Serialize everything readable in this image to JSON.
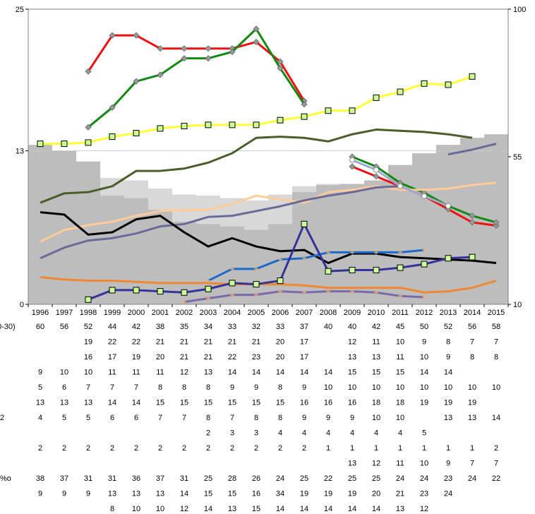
{
  "chart_data": {
    "type": "line",
    "x": [
      "1996",
      "1997",
      "1998",
      "1999",
      "2000",
      "2001",
      "2002",
      "2003",
      "2004",
      "2005",
      "2006",
      "2007",
      "2008",
      "2009",
      "2010",
      "2011",
      "2012",
      "2013",
      "2014",
      "2015"
    ],
    "y_left": {
      "min": 0,
      "max": 25,
      "ticks": [
        "0",
        "13",
        "25"
      ]
    },
    "y_right": {
      "min": 10,
      "max": 100,
      "ticks": [
        "10",
        "55",
        "100"
      ]
    },
    "grid": false,
    "background_areas": [
      {
        "color": "#bdbdbd",
        "axis": "left",
        "values": [
          13.5,
          13.0,
          12.1,
          9.2,
          9.0,
          8.0,
          7.0,
          6.8,
          6.6,
          6.3,
          6.8,
          9.5,
          10.1,
          10.2,
          10.5,
          11.8,
          12.8,
          13.5,
          14.1,
          14.4
        ]
      },
      {
        "color": "#d8d8d8",
        "axis": "left",
        "values": [
          13.5,
          13.0,
          12.1,
          10.7,
          10.5,
          9.8,
          9.3,
          9.2,
          9.0,
          8.8,
          9.3,
          10.0,
          10.2,
          10.2,
          10.5,
          11.8,
          12.8,
          13.5,
          14.1,
          14.4
        ]
      }
    ],
    "series": [
      {
        "color": "#ee1111",
        "axis": "right",
        "marker": "diamond",
        "values": [
          null,
          null,
          81,
          92,
          92,
          88,
          88,
          88,
          88,
          90,
          84,
          72,
          null,
          52,
          49,
          46,
          43,
          39,
          35,
          34
        ]
      },
      {
        "color": "#118811",
        "axis": "right",
        "marker": "diamond",
        "values": [
          null,
          null,
          64,
          70,
          78,
          80,
          85,
          85,
          87,
          94,
          82,
          71,
          null,
          55,
          52,
          47,
          44,
          40,
          37,
          35
        ]
      },
      {
        "color": "#ffff33",
        "axis": "right",
        "marker": "square",
        "values": [
          null,
          null,
          null,
          null,
          null,
          null,
          null,
          null,
          null,
          null,
          null,
          null,
          null,
          null,
          null,
          null,
          null,
          null,
          null,
          null
        ]
      },
      {
        "color": "#ffff33",
        "axis": "left",
        "marker": "square",
        "values": [
          13.6,
          13.6,
          13.7,
          14.2,
          14.5,
          14.9,
          15.1,
          15.2,
          15.2,
          15.2,
          15.6,
          15.9,
          16.4,
          16.4,
          17.5,
          18.0,
          18.7,
          18.6,
          19.3,
          null
        ]
      },
      {
        "color": "#4a5e2a",
        "axis": "left",
        "marker": "none",
        "values": [
          8.6,
          9.4,
          9.5,
          10.0,
          11.3,
          11.3,
          11.5,
          12.0,
          12.8,
          14.1,
          14.2,
          14.1,
          13.8,
          14.4,
          14.8,
          14.7,
          14.6,
          14.4,
          14.1,
          null
        ]
      },
      {
        "color": "#ffcc99",
        "axis": "left",
        "marker": "none",
        "values": [
          5.3,
          6.3,
          6.7,
          7.0,
          7.5,
          7.9,
          8.0,
          8.0,
          8.5,
          9.2,
          8.9,
          8.6,
          9.5,
          9.7,
          10.0,
          9.7,
          9.7,
          9.8,
          10.1,
          10.3
        ]
      },
      {
        "color": "#6a6a9a",
        "axis": "left",
        "marker": "none",
        "values": [
          3.9,
          4.8,
          5.4,
          5.6,
          6.0,
          6.6,
          6.8,
          7.4,
          7.5,
          7.9,
          8.3,
          8.8,
          9.2,
          9.5,
          9.9,
          10.0,
          null,
          12.7,
          13.1,
          13.6
        ]
      },
      {
        "color": "#000000",
        "axis": "left",
        "marker": "none",
        "values": [
          7.8,
          7.6,
          5.9,
          6.1,
          7.2,
          7.5,
          6.1,
          4.9,
          5.6,
          4.9,
          4.5,
          4.6,
          3.5,
          4.3,
          4.3,
          4.0,
          3.9,
          3.8,
          3.7,
          3.5
        ]
      },
      {
        "color": "#ee8833",
        "axis": "left",
        "marker": "none",
        "values": [
          2.3,
          2.1,
          2.0,
          2.0,
          1.9,
          1.8,
          1.8,
          1.8,
          1.7,
          1.7,
          1.7,
          1.6,
          1.4,
          1.4,
          1.4,
          1.4,
          1.0,
          1.1,
          1.4,
          2.0
        ]
      },
      {
        "color": "#1a6acc",
        "axis": "left",
        "marker": "plus",
        "values": [
          null,
          null,
          null,
          null,
          null,
          null,
          null,
          2.0,
          3.0,
          3.0,
          3.8,
          3.9,
          4.4,
          4.4,
          4.4,
          4.4,
          4.6,
          null,
          null,
          null
        ]
      },
      {
        "color": "#333399",
        "axis": "left",
        "marker": "square",
        "values": [
          null,
          null,
          0.4,
          1.2,
          1.2,
          1.1,
          1.0,
          1.3,
          1.8,
          1.7,
          2.0,
          6.8,
          2.8,
          2.9,
          2.9,
          3.1,
          3.4,
          3.9,
          4.0,
          null
        ]
      },
      {
        "color": "#7a6aaa",
        "axis": "left",
        "marker": "plus",
        "values": [
          null,
          null,
          null,
          null,
          null,
          null,
          0.2,
          0.5,
          0.8,
          0.8,
          1.1,
          1.0,
          1.1,
          1.1,
          1.0,
          0.7,
          0.6,
          null,
          null,
          null
        ]
      },
      {
        "color": "#a0a8cc",
        "axis": "right",
        "marker": "circle",
        "values": [
          null,
          null,
          null,
          null,
          null,
          null,
          null,
          null,
          null,
          null,
          null,
          null,
          null,
          54,
          51,
          46,
          43,
          40,
          null,
          null
        ]
      },
      {
        "color": "#bbbbbb",
        "axis": "right",
        "marker": "circle",
        "values": [
          null,
          null,
          null,
          null,
          null,
          null,
          null,
          null,
          null,
          null,
          null,
          null,
          null,
          null,
          null,
          null,
          null,
          null,
          null,
          null
        ]
      }
    ],
    "table": {
      "row_labels": [
        "0-30)",
        "",
        "",
        "",
        "",
        "",
        "2",
        "",
        "",
        "",
        "%o",
        "",
        ""
      ],
      "rows": [
        [
          "60",
          "56",
          "52",
          "44",
          "42",
          "38",
          "35",
          "34",
          "33",
          "32",
          "33",
          "37",
          "40",
          "40",
          "42",
          "45",
          "50",
          "52",
          "56",
          "58"
        ],
        [
          "",
          "",
          "19",
          "22",
          "22",
          "21",
          "21",
          "21",
          "21",
          "21",
          "20",
          "17",
          "",
          "12",
          "11",
          "10",
          "9",
          "8",
          "7",
          "7"
        ],
        [
          "",
          "",
          "16",
          "17",
          "19",
          "20",
          "21",
          "21",
          "22",
          "23",
          "20",
          "17",
          "",
          "13",
          "13",
          "11",
          "10",
          "9",
          "8",
          "8"
        ],
        [
          "9",
          "10",
          "10",
          "11",
          "11",
          "11",
          "12",
          "13",
          "14",
          "14",
          "14",
          "14",
          "14",
          "15",
          "15",
          "15",
          "14",
          "14",
          "",
          ""
        ],
        [
          "5",
          "6",
          "7",
          "7",
          "7",
          "8",
          "8",
          "8",
          "9",
          "9",
          "8",
          "9",
          "10",
          "10",
          "10",
          "10",
          "10",
          "10",
          "10",
          "10"
        ],
        [
          "13",
          "13",
          "13",
          "14",
          "14",
          "15",
          "15",
          "15",
          "15",
          "15",
          "15",
          "16",
          "16",
          "16",
          "18",
          "18",
          "19",
          "19",
          "19",
          ""
        ],
        [
          "4",
          "5",
          "5",
          "6",
          "6",
          "7",
          "7",
          "8",
          "7",
          "8",
          "8",
          "9",
          "9",
          "9",
          "10",
          "10",
          "",
          "13",
          "13",
          "14"
        ],
        [
          "",
          "",
          "",
          "",
          "",
          "",
          "",
          "2",
          "3",
          "3",
          "4",
          "4",
          "4",
          "4",
          "4",
          "4",
          "5",
          "",
          "",
          ""
        ],
        [
          "2",
          "2",
          "2",
          "2",
          "2",
          "2",
          "2",
          "2",
          "2",
          "2",
          "2",
          "2",
          "1",
          "1",
          "1",
          "1",
          "1",
          "1",
          "1",
          "2"
        ],
        [
          "",
          "",
          "",
          "",
          "",
          "",
          "",
          "",
          "",
          "",
          "",
          "",
          "",
          "13",
          "12",
          "11",
          "10",
          "9",
          "7",
          "7"
        ],
        [
          "38",
          "37",
          "31",
          "31",
          "36",
          "37",
          "31",
          "25",
          "28",
          "26",
          "24",
          "25",
          "22",
          "25",
          "25",
          "24",
          "24",
          "23",
          "24",
          "22"
        ],
        [
          "9",
          "9",
          "9",
          "13",
          "13",
          "13",
          "14",
          "15",
          "15",
          "16",
          "34",
          "19",
          "19",
          "19",
          "20",
          "21",
          "23",
          "24",
          "",
          ""
        ],
        [
          "",
          "",
          "",
          "8",
          "10",
          "10",
          "12",
          "14",
          "13",
          "15",
          "14",
          "14",
          "14",
          "14",
          "14",
          "13",
          "12",
          "",
          "",
          ""
        ]
      ]
    }
  }
}
